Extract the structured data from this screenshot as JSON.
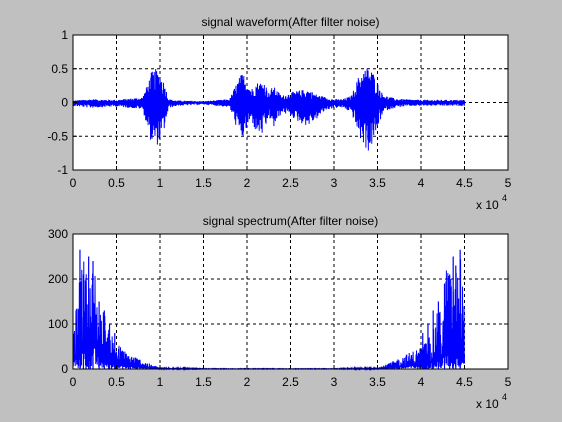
{
  "chart_data": [
    {
      "type": "line",
      "title": "signal waveform(After filter noise)",
      "xlabel": "",
      "ylabel": "",
      "x_exponent_label": "x 10",
      "x_exponent": "4",
      "xlim": [
        0,
        5
      ],
      "ylim": [
        -1,
        1
      ],
      "xticks": [
        "0",
        "0.5",
        "1",
        "1.5",
        "2",
        "2.5",
        "3",
        "3.5",
        "4",
        "4.5",
        "5"
      ],
      "yticks": [
        "-1",
        "-0.5",
        "0",
        "0.5",
        "1"
      ],
      "grid": true,
      "series_color": "#0000ff",
      "envelope": {
        "x": [
          0.0,
          0.2,
          0.5,
          0.8,
          0.85,
          0.9,
          0.95,
          1.0,
          1.05,
          1.1,
          1.2,
          1.5,
          1.8,
          1.9,
          1.95,
          2.0,
          2.05,
          2.1,
          2.2,
          2.25,
          2.3,
          2.4,
          2.5,
          2.6,
          2.7,
          2.8,
          2.9,
          3.0,
          3.1,
          3.2,
          3.3,
          3.35,
          3.4,
          3.45,
          3.5,
          3.55,
          3.6,
          3.7,
          3.8,
          4.0,
          4.2,
          4.5
        ],
        "upper": [
          0.03,
          0.05,
          0.04,
          0.08,
          0.25,
          0.45,
          0.5,
          0.45,
          0.3,
          0.05,
          0.03,
          0.02,
          0.05,
          0.35,
          0.45,
          0.35,
          0.2,
          0.3,
          0.32,
          0.15,
          0.25,
          0.1,
          0.15,
          0.18,
          0.2,
          0.12,
          0.08,
          0.05,
          0.05,
          0.1,
          0.45,
          0.5,
          0.55,
          0.45,
          0.3,
          0.15,
          0.1,
          0.06,
          0.05,
          0.04,
          0.04,
          0.04
        ],
        "lower": [
          -0.05,
          -0.08,
          -0.06,
          -0.1,
          -0.35,
          -0.6,
          -0.65,
          -0.6,
          -0.4,
          -0.08,
          -0.05,
          -0.03,
          -0.07,
          -0.45,
          -0.55,
          -0.4,
          -0.25,
          -0.45,
          -0.5,
          -0.2,
          -0.4,
          -0.15,
          -0.2,
          -0.3,
          -0.35,
          -0.25,
          -0.12,
          -0.08,
          -0.08,
          -0.15,
          -0.55,
          -0.65,
          -0.75,
          -0.6,
          -0.4,
          -0.2,
          -0.12,
          -0.08,
          -0.06,
          -0.05,
          -0.05,
          -0.05
        ]
      }
    },
    {
      "type": "line",
      "title": "signal spectrum(After filter noise)",
      "xlabel": "",
      "ylabel": "",
      "x_exponent_label": "x 10",
      "x_exponent": "4",
      "xlim": [
        0,
        5
      ],
      "ylim": [
        0,
        300
      ],
      "xticks": [
        "0",
        "0.5",
        "1",
        "1.5",
        "2",
        "2.5",
        "3",
        "3.5",
        "4",
        "4.5",
        "5"
      ],
      "yticks": [
        "0",
        "100",
        "200",
        "300"
      ],
      "grid": true,
      "series_color": "#0000ff",
      "envelope": {
        "x": [
          0.0,
          0.05,
          0.1,
          0.15,
          0.2,
          0.25,
          0.3,
          0.35,
          0.4,
          0.45,
          0.5,
          0.55,
          0.6,
          0.7,
          0.8,
          0.9,
          1.0,
          1.5,
          2.0,
          2.5,
          3.0,
          3.5,
          3.6,
          3.7,
          3.8,
          3.9,
          4.0,
          4.05,
          4.1,
          4.15,
          4.2,
          4.25,
          4.3,
          4.35,
          4.4,
          4.45,
          4.5
        ],
        "upper": [
          100,
          150,
          270,
          220,
          200,
          250,
          120,
          140,
          90,
          80,
          60,
          50,
          40,
          30,
          20,
          10,
          4,
          1,
          1,
          1,
          1,
          4,
          10,
          20,
          30,
          40,
          50,
          60,
          80,
          90,
          140,
          120,
          250,
          200,
          220,
          270,
          150
        ]
      },
      "peaks": [
        {
          "x": 0.08,
          "y": 265
        },
        {
          "x": 0.18,
          "y": 250
        },
        {
          "x": 0.23,
          "y": 240
        },
        {
          "x": 0.12,
          "y": 210
        },
        {
          "x": 0.15,
          "y": 190
        },
        {
          "x": 0.3,
          "y": 150
        },
        {
          "x": 0.36,
          "y": 130
        },
        {
          "x": 0.42,
          "y": 100
        },
        {
          "x": 0.48,
          "y": 80
        },
        {
          "x": 4.45,
          "y": 265
        },
        {
          "x": 4.37,
          "y": 250
        },
        {
          "x": 4.4,
          "y": 230
        },
        {
          "x": 4.33,
          "y": 210
        },
        {
          "x": 4.27,
          "y": 190
        },
        {
          "x": 4.2,
          "y": 150
        },
        {
          "x": 4.14,
          "y": 130
        },
        {
          "x": 4.08,
          "y": 100
        },
        {
          "x": 4.02,
          "y": 80
        }
      ]
    }
  ]
}
